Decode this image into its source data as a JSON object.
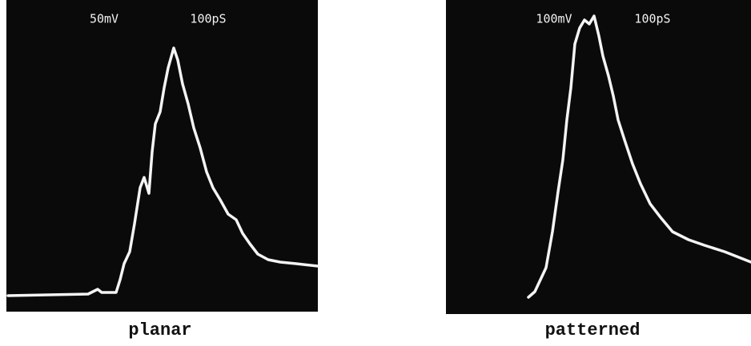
{
  "panels": [
    {
      "voltage_scale": "50mV",
      "time_scale": "100pS",
      "caption": "planar"
    },
    {
      "voltage_scale": "100mV",
      "time_scale": "100pS",
      "caption": "patterned"
    }
  ]
}
